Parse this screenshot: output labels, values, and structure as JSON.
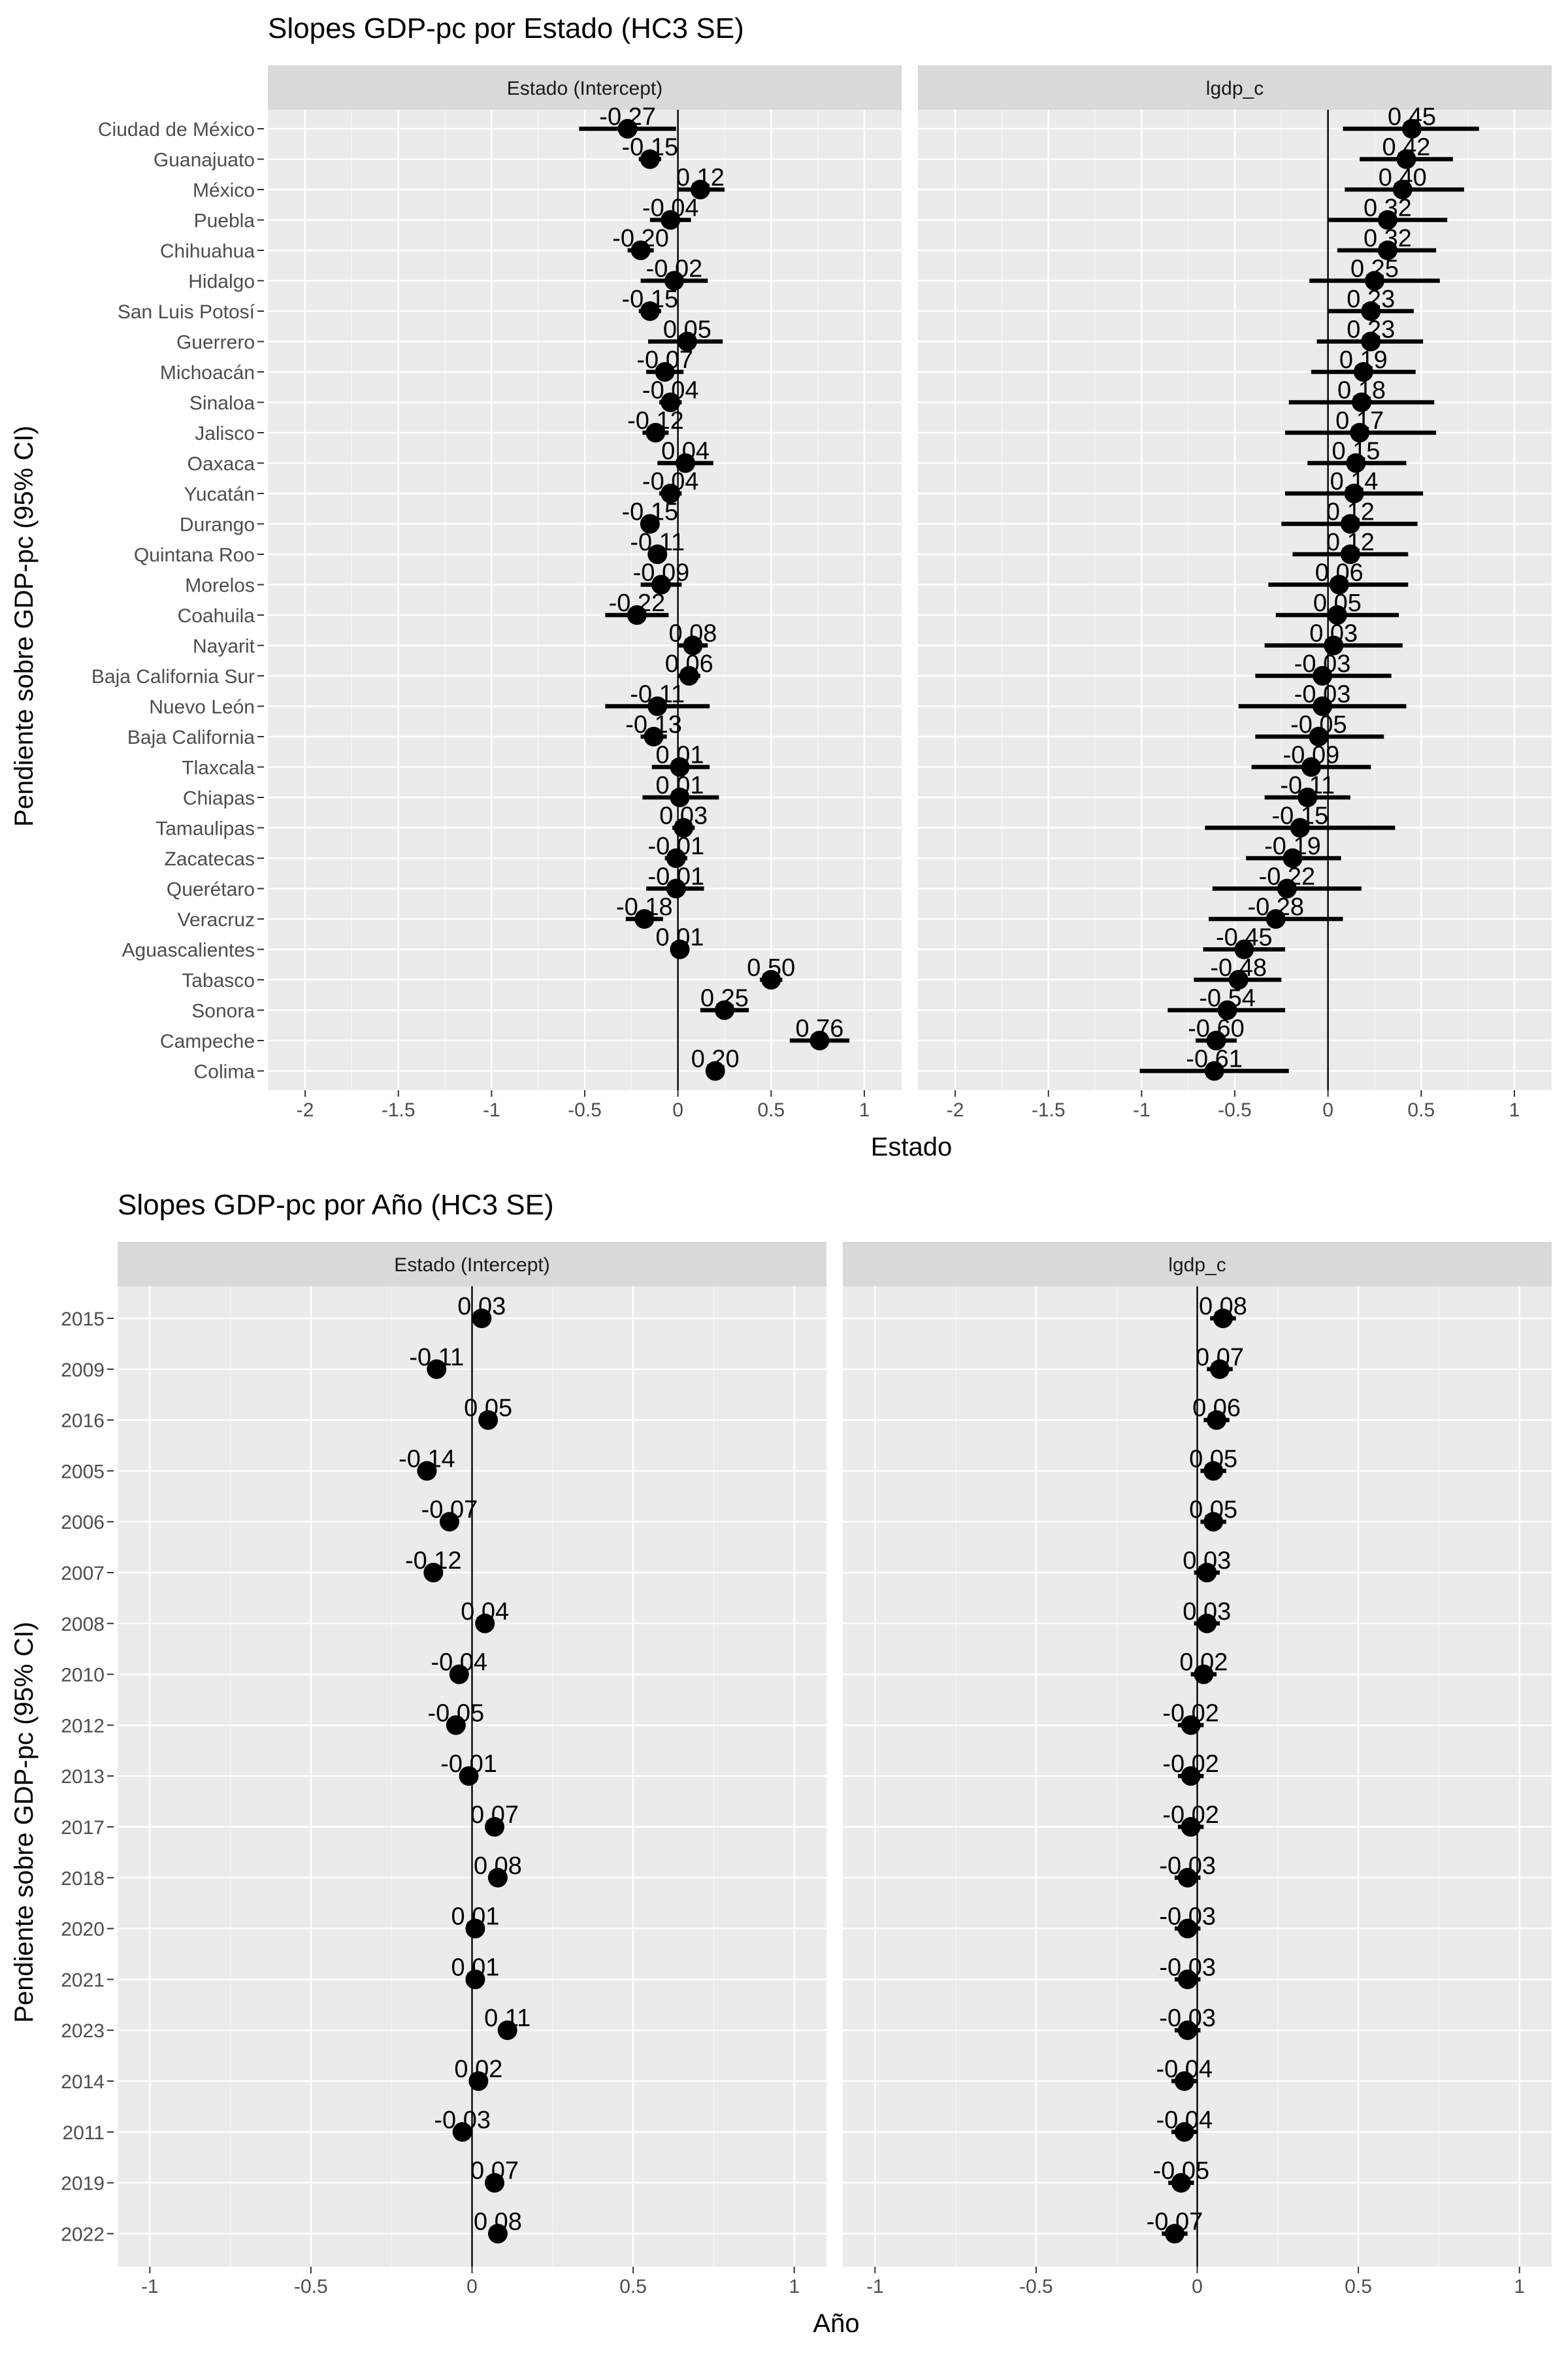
{
  "chart_data": [
    {
      "type": "forest",
      "title": "Slopes GDP-pc por Estado (HC3 SE)",
      "xlabel": "Estado",
      "ylabel": "Pendiente sobre GDP-pc (95% CI)",
      "xlim": [
        -2.2,
        1.2
      ],
      "xticks": [
        -2,
        -1.5,
        -1,
        -0.5,
        0,
        0.5,
        1
      ],
      "panels": [
        {
          "name": "Estado (Intercept)",
          "points": [
            {
              "label": "Ciudad de México",
              "estimate": -0.27,
              "lo": -0.53,
              "hi": -0.01,
              "text": "-0.27"
            },
            {
              "label": "Guanajuato",
              "estimate": -0.15,
              "lo": -0.21,
              "hi": -0.09,
              "text": "-0.15"
            },
            {
              "label": "México",
              "estimate": 0.12,
              "lo": 0.0,
              "hi": 0.25,
              "text": "0.12"
            },
            {
              "label": "Puebla",
              "estimate": -0.04,
              "lo": -0.15,
              "hi": 0.07,
              "text": "-0.04"
            },
            {
              "label": "Chihuahua",
              "estimate": -0.2,
              "lo": -0.27,
              "hi": -0.13,
              "text": "-0.20"
            },
            {
              "label": "Hidalgo",
              "estimate": -0.02,
              "lo": -0.2,
              "hi": 0.16,
              "text": "-0.02"
            },
            {
              "label": "San Luis Potosí",
              "estimate": -0.15,
              "lo": -0.21,
              "hi": -0.09,
              "text": "-0.15"
            },
            {
              "label": "Guerrero",
              "estimate": 0.05,
              "lo": -0.16,
              "hi": 0.24,
              "text": "0.05"
            },
            {
              "label": "Michoacán",
              "estimate": -0.07,
              "lo": -0.17,
              "hi": 0.03,
              "text": "-0.07"
            },
            {
              "label": "Sinaloa",
              "estimate": -0.04,
              "lo": -0.1,
              "hi": 0.02,
              "text": "-0.04"
            },
            {
              "label": "Jalisco",
              "estimate": -0.12,
              "lo": -0.19,
              "hi": -0.05,
              "text": "-0.12"
            },
            {
              "label": "Oaxaca",
              "estimate": 0.04,
              "lo": -0.11,
              "hi": 0.19,
              "text": "0.04"
            },
            {
              "label": "Yucatán",
              "estimate": -0.04,
              "lo": -0.1,
              "hi": 0.02,
              "text": "-0.04"
            },
            {
              "label": "Durango",
              "estimate": -0.15,
              "lo": -0.2,
              "hi": -0.1,
              "text": "-0.15"
            },
            {
              "label": "Quintana Roo",
              "estimate": -0.11,
              "lo": -0.16,
              "hi": -0.06,
              "text": "-0.11"
            },
            {
              "label": "Morelos",
              "estimate": -0.09,
              "lo": -0.2,
              "hi": 0.02,
              "text": "-0.09"
            },
            {
              "label": "Coahuila",
              "estimate": -0.22,
              "lo": -0.39,
              "hi": -0.05,
              "text": "-0.22"
            },
            {
              "label": "Nayarit",
              "estimate": 0.08,
              "lo": 0.0,
              "hi": 0.16,
              "text": "0.08"
            },
            {
              "label": "Baja California Sur",
              "estimate": 0.06,
              "lo": 0.0,
              "hi": 0.12,
              "text": "0.06"
            },
            {
              "label": "Nuevo León",
              "estimate": -0.11,
              "lo": -0.39,
              "hi": 0.17,
              "text": "-0.11"
            },
            {
              "label": "Baja California",
              "estimate": -0.13,
              "lo": -0.2,
              "hi": -0.06,
              "text": "-0.13"
            },
            {
              "label": "Tlaxcala",
              "estimate": 0.01,
              "lo": -0.14,
              "hi": 0.17,
              "text": "0.01"
            },
            {
              "label": "Chiapas",
              "estimate": 0.01,
              "lo": -0.19,
              "hi": 0.22,
              "text": "0.01"
            },
            {
              "label": "Tamaulipas",
              "estimate": 0.03,
              "lo": -0.03,
              "hi": 0.09,
              "text": "0.03"
            },
            {
              "label": "Zacatecas",
              "estimate": -0.01,
              "lo": -0.07,
              "hi": 0.05,
              "text": "-0.01"
            },
            {
              "label": "Querétaro",
              "estimate": -0.01,
              "lo": -0.17,
              "hi": 0.14,
              "text": "-0.01"
            },
            {
              "label": "Veracruz",
              "estimate": -0.18,
              "lo": -0.28,
              "hi": -0.08,
              "text": "-0.18"
            },
            {
              "label": "Aguascalientes",
              "estimate": 0.01,
              "lo": -0.02,
              "hi": 0.04,
              "text": "0.01"
            },
            {
              "label": "Tabasco",
              "estimate": 0.5,
              "lo": 0.44,
              "hi": 0.56,
              "text": "0.50"
            },
            {
              "label": "Sonora",
              "estimate": 0.25,
              "lo": 0.12,
              "hi": 0.38,
              "text": "0.25"
            },
            {
              "label": "Campeche",
              "estimate": 0.76,
              "lo": 0.6,
              "hi": 0.92,
              "text": "0.76"
            },
            {
              "label": "Colima",
              "estimate": 0.2,
              "lo": 0.17,
              "hi": 0.23,
              "text": "0.20"
            }
          ]
        },
        {
          "name": "lgdp_c",
          "points": [
            {
              "label": "Ciudad de México",
              "estimate": 0.45,
              "lo": 0.08,
              "hi": 0.81,
              "text": "0.45"
            },
            {
              "label": "Guanajuato",
              "estimate": 0.42,
              "lo": 0.17,
              "hi": 0.67,
              "text": "0.42"
            },
            {
              "label": "México",
              "estimate": 0.4,
              "lo": 0.09,
              "hi": 0.73,
              "text": "0.40"
            },
            {
              "label": "Puebla",
              "estimate": 0.32,
              "lo": 0.0,
              "hi": 0.64,
              "text": "0.32"
            },
            {
              "label": "Chihuahua",
              "estimate": 0.32,
              "lo": 0.05,
              "hi": 0.58,
              "text": "0.32"
            },
            {
              "label": "Hidalgo",
              "estimate": 0.25,
              "lo": -0.1,
              "hi": 0.6,
              "text": "0.25"
            },
            {
              "label": "San Luis Potosí",
              "estimate": 0.23,
              "lo": 0.0,
              "hi": 0.46,
              "text": "0.23"
            },
            {
              "label": "Guerrero",
              "estimate": 0.23,
              "lo": -0.06,
              "hi": 0.51,
              "text": "0.23"
            },
            {
              "label": "Michoacán",
              "estimate": 0.19,
              "lo": -0.09,
              "hi": 0.47,
              "text": "0.19"
            },
            {
              "label": "Sinaloa",
              "estimate": 0.18,
              "lo": -0.21,
              "hi": 0.57,
              "text": "0.18"
            },
            {
              "label": "Jalisco",
              "estimate": 0.17,
              "lo": -0.23,
              "hi": 0.58,
              "text": "0.17"
            },
            {
              "label": "Oaxaca",
              "estimate": 0.15,
              "lo": -0.11,
              "hi": 0.42,
              "text": "0.15"
            },
            {
              "label": "Yucatán",
              "estimate": 0.14,
              "lo": -0.23,
              "hi": 0.51,
              "text": "0.14"
            },
            {
              "label": "Durango",
              "estimate": 0.12,
              "lo": -0.25,
              "hi": 0.48,
              "text": "0.12"
            },
            {
              "label": "Quintana Roo",
              "estimate": 0.12,
              "lo": -0.19,
              "hi": 0.43,
              "text": "0.12"
            },
            {
              "label": "Morelos",
              "estimate": 0.06,
              "lo": -0.32,
              "hi": 0.43,
              "text": "0.06"
            },
            {
              "label": "Coahuila",
              "estimate": 0.05,
              "lo": -0.28,
              "hi": 0.38,
              "text": "0.05"
            },
            {
              "label": "Nayarit",
              "estimate": 0.03,
              "lo": -0.34,
              "hi": 0.4,
              "text": "0.03"
            },
            {
              "label": "Baja California Sur",
              "estimate": -0.03,
              "lo": -0.39,
              "hi": 0.34,
              "text": "-0.03"
            },
            {
              "label": "Nuevo León",
              "estimate": -0.03,
              "lo": -0.48,
              "hi": 0.42,
              "text": "-0.03"
            },
            {
              "label": "Baja California",
              "estimate": -0.05,
              "lo": -0.39,
              "hi": 0.3,
              "text": "-0.05"
            },
            {
              "label": "Tlaxcala",
              "estimate": -0.09,
              "lo": -0.41,
              "hi": 0.23,
              "text": "-0.09"
            },
            {
              "label": "Chiapas",
              "estimate": -0.11,
              "lo": -0.34,
              "hi": 0.12,
              "text": "-0.11"
            },
            {
              "label": "Tamaulipas",
              "estimate": -0.15,
              "lo": -0.66,
              "hi": 0.36,
              "text": "-0.15"
            },
            {
              "label": "Zacatecas",
              "estimate": -0.19,
              "lo": -0.44,
              "hi": 0.07,
              "text": "-0.19"
            },
            {
              "label": "Querétaro",
              "estimate": -0.22,
              "lo": -0.62,
              "hi": 0.18,
              "text": "-0.22"
            },
            {
              "label": "Veracruz",
              "estimate": -0.28,
              "lo": -0.64,
              "hi": 0.08,
              "text": "-0.28"
            },
            {
              "label": "Aguascalientes",
              "estimate": -0.45,
              "lo": -0.67,
              "hi": -0.23,
              "text": "-0.45"
            },
            {
              "label": "Tabasco",
              "estimate": -0.48,
              "lo": -0.72,
              "hi": -0.25,
              "text": "-0.48"
            },
            {
              "label": "Sonora",
              "estimate": -0.54,
              "lo": -0.86,
              "hi": -0.23,
              "text": "-0.54"
            },
            {
              "label": "Campeche",
              "estimate": -0.6,
              "lo": -0.71,
              "hi": -0.49,
              "text": "-0.60"
            },
            {
              "label": "Colima",
              "estimate": -0.61,
              "lo": -1.01,
              "hi": -0.21,
              "text": "-0.61"
            }
          ]
        }
      ]
    },
    {
      "type": "forest",
      "title": "Slopes GDP-pc por Año (HC3 SE)",
      "xlabel": "Año",
      "ylabel": "Pendiente sobre GDP-pc (95% CI)",
      "xlim": [
        -1.1,
        1.1
      ],
      "xticks": [
        -1,
        -0.5,
        0,
        0.5,
        1
      ],
      "panels": [
        {
          "name": "Estado (Intercept)",
          "points": [
            {
              "label": "2015",
              "estimate": 0.03,
              "lo": 0.01,
              "hi": 0.05,
              "text": "0.03"
            },
            {
              "label": "2009",
              "estimate": -0.11,
              "lo": -0.13,
              "hi": -0.09,
              "text": "-0.11"
            },
            {
              "label": "2016",
              "estimate": 0.05,
              "lo": 0.03,
              "hi": 0.07,
              "text": "0.05"
            },
            {
              "label": "2005",
              "estimate": -0.14,
              "lo": -0.16,
              "hi": -0.12,
              "text": "-0.14"
            },
            {
              "label": "2006",
              "estimate": -0.07,
              "lo": -0.09,
              "hi": -0.05,
              "text": "-0.07"
            },
            {
              "label": "2007",
              "estimate": -0.12,
              "lo": -0.14,
              "hi": -0.1,
              "text": "-0.12"
            },
            {
              "label": "2008",
              "estimate": 0.04,
              "lo": 0.02,
              "hi": 0.06,
              "text": "0.04"
            },
            {
              "label": "2010",
              "estimate": -0.04,
              "lo": -0.06,
              "hi": -0.02,
              "text": "-0.04"
            },
            {
              "label": "2012",
              "estimate": -0.05,
              "lo": -0.07,
              "hi": -0.03,
              "text": "-0.05"
            },
            {
              "label": "2013",
              "estimate": -0.01,
              "lo": -0.03,
              "hi": 0.01,
              "text": "-0.01"
            },
            {
              "label": "2017",
              "estimate": 0.07,
              "lo": 0.05,
              "hi": 0.09,
              "text": "0.07"
            },
            {
              "label": "2018",
              "estimate": 0.08,
              "lo": 0.06,
              "hi": 0.1,
              "text": "0.08"
            },
            {
              "label": "2020",
              "estimate": 0.01,
              "lo": -0.01,
              "hi": 0.03,
              "text": "0.01"
            },
            {
              "label": "2021",
              "estimate": 0.01,
              "lo": -0.01,
              "hi": 0.03,
              "text": "0.01"
            },
            {
              "label": "2023",
              "estimate": 0.11,
              "lo": 0.09,
              "hi": 0.13,
              "text": "0.11"
            },
            {
              "label": "2014",
              "estimate": 0.02,
              "lo": 0.0,
              "hi": 0.04,
              "text": "0.02"
            },
            {
              "label": "2011",
              "estimate": -0.03,
              "lo": -0.05,
              "hi": -0.01,
              "text": "-0.03"
            },
            {
              "label": "2019",
              "estimate": 0.07,
              "lo": 0.05,
              "hi": 0.09,
              "text": "0.07"
            },
            {
              "label": "2022",
              "estimate": 0.08,
              "lo": 0.06,
              "hi": 0.1,
              "text": "0.08"
            }
          ]
        },
        {
          "name": "lgdp_c",
          "points": [
            {
              "label": "2015",
              "estimate": 0.08,
              "lo": 0.04,
              "hi": 0.12,
              "text": "0.08"
            },
            {
              "label": "2009",
              "estimate": 0.07,
              "lo": 0.03,
              "hi": 0.11,
              "text": "0.07"
            },
            {
              "label": "2016",
              "estimate": 0.06,
              "lo": 0.02,
              "hi": 0.1,
              "text": "0.06"
            },
            {
              "label": "2005",
              "estimate": 0.05,
              "lo": 0.01,
              "hi": 0.09,
              "text": "0.05"
            },
            {
              "label": "2006",
              "estimate": 0.05,
              "lo": 0.01,
              "hi": 0.09,
              "text": "0.05"
            },
            {
              "label": "2007",
              "estimate": 0.03,
              "lo": -0.01,
              "hi": 0.07,
              "text": "0.03"
            },
            {
              "label": "2008",
              "estimate": 0.03,
              "lo": -0.01,
              "hi": 0.07,
              "text": "0.03"
            },
            {
              "label": "2010",
              "estimate": 0.02,
              "lo": -0.02,
              "hi": 0.06,
              "text": "0.02"
            },
            {
              "label": "2012",
              "estimate": -0.02,
              "lo": -0.06,
              "hi": 0.02,
              "text": "-0.02"
            },
            {
              "label": "2013",
              "estimate": -0.02,
              "lo": -0.06,
              "hi": 0.02,
              "text": "-0.02"
            },
            {
              "label": "2017",
              "estimate": -0.02,
              "lo": -0.06,
              "hi": 0.02,
              "text": "-0.02"
            },
            {
              "label": "2018",
              "estimate": -0.03,
              "lo": -0.07,
              "hi": 0.01,
              "text": "-0.03"
            },
            {
              "label": "2020",
              "estimate": -0.03,
              "lo": -0.07,
              "hi": 0.01,
              "text": "-0.03"
            },
            {
              "label": "2021",
              "estimate": -0.03,
              "lo": -0.07,
              "hi": 0.01,
              "text": "-0.03"
            },
            {
              "label": "2023",
              "estimate": -0.03,
              "lo": -0.07,
              "hi": 0.01,
              "text": "-0.03"
            },
            {
              "label": "2014",
              "estimate": -0.04,
              "lo": -0.08,
              "hi": 0.0,
              "text": "-0.04"
            },
            {
              "label": "2011",
              "estimate": -0.04,
              "lo": -0.08,
              "hi": 0.0,
              "text": "-0.04"
            },
            {
              "label": "2019",
              "estimate": -0.05,
              "lo": -0.09,
              "hi": -0.01,
              "text": "-0.05"
            },
            {
              "label": "2022",
              "estimate": -0.07,
              "lo": -0.11,
              "hi": -0.03,
              "text": "-0.07"
            }
          ]
        }
      ]
    }
  ],
  "colors": {
    "panel_background": "#ebebeb",
    "grid": "#ffffff",
    "strip_background": "#d9d9d9",
    "mark": "#000000",
    "axis_text": "#4d4d4d",
    "text": "#000000"
  }
}
